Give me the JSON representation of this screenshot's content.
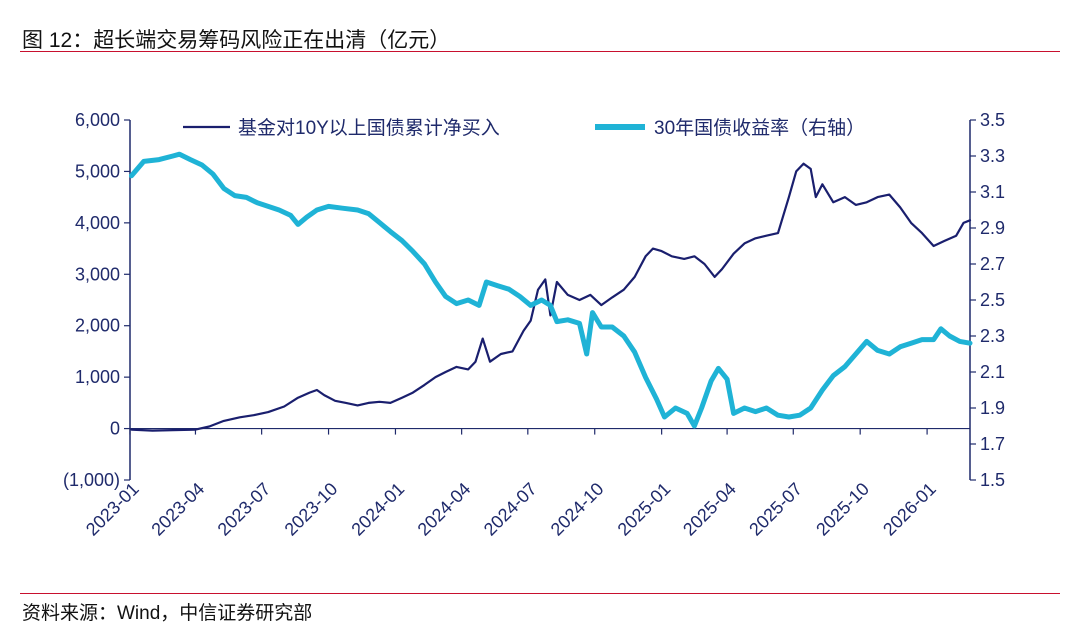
{
  "figure": {
    "title": "图 12：超长端交易筹码风险正在出清（亿元）",
    "source": "资料来源：Wind，中信证券研究部"
  },
  "colors": {
    "accent_rule": "#c8102e",
    "axis": "#1f2a6b",
    "tick_text": "#1f2a6b",
    "series_fund": "#1a1f6e",
    "series_yield": "#1fb3d6"
  },
  "chart_data": {
    "type": "line",
    "title": "超长端交易筹码风险正在出清（亿元）",
    "x_ticks": [
      "2023-01",
      "2023-04",
      "2023-07",
      "2023-10",
      "2024-01",
      "2024-04",
      "2024-07",
      "2024-10",
      "2025-01",
      "2025-04",
      "2025-07",
      "2025-10",
      "2026-01"
    ],
    "x_range": [
      "2023-01",
      "2026-03"
    ],
    "y_left": {
      "range": [
        -1000,
        6000
      ],
      "ticks": [
        -1000,
        0,
        1000,
        2000,
        3000,
        4000,
        5000,
        6000
      ],
      "tick_labels": [
        "(1,000)",
        "0",
        "1,000",
        "2,000",
        "3,000",
        "4,000",
        "5,000",
        "6,000"
      ]
    },
    "y_right": {
      "range": [
        1.5,
        3.5
      ],
      "ticks": [
        1.5,
        1.7,
        1.9,
        2.1,
        2.3,
        2.5,
        2.7,
        2.9,
        3.1,
        3.3,
        3.5
      ],
      "tick_labels": [
        "1.5",
        "1.7",
        "1.9",
        "2.1",
        "2.3",
        "2.5",
        "2.7",
        "2.9",
        "3.1",
        "3.3",
        "3.5"
      ]
    },
    "legend_position": "top",
    "series": [
      {
        "name": "基金对10Y以上国债累计净买入",
        "axis": "left",
        "points": [
          [
            "2023-01-03",
            -20
          ],
          [
            "2023-02-01",
            -40
          ],
          [
            "2023-03-01",
            -30
          ],
          [
            "2023-04-01",
            -20
          ],
          [
            "2023-04-20",
            40
          ],
          [
            "2023-05-10",
            150
          ],
          [
            "2023-06-01",
            220
          ],
          [
            "2023-06-20",
            260
          ],
          [
            "2023-07-10",
            320
          ],
          [
            "2023-08-01",
            430
          ],
          [
            "2023-08-20",
            600
          ],
          [
            "2023-09-05",
            700
          ],
          [
            "2023-09-15",
            750
          ],
          [
            "2023-09-25",
            650
          ],
          [
            "2023-10-10",
            540
          ],
          [
            "2023-10-25",
            500
          ],
          [
            "2023-11-10",
            450
          ],
          [
            "2023-11-25",
            500
          ],
          [
            "2023-12-10",
            520
          ],
          [
            "2023-12-25",
            500
          ],
          [
            "2024-01-10",
            600
          ],
          [
            "2024-01-25",
            700
          ],
          [
            "2024-02-10",
            850
          ],
          [
            "2024-02-25",
            1000
          ],
          [
            "2024-03-10",
            1100
          ],
          [
            "2024-03-25",
            1200
          ],
          [
            "2024-04-10",
            1150
          ],
          [
            "2024-04-20",
            1300
          ],
          [
            "2024-04-30",
            1750
          ],
          [
            "2024-05-10",
            1300
          ],
          [
            "2024-05-25",
            1450
          ],
          [
            "2024-06-10",
            1500
          ],
          [
            "2024-06-25",
            1900
          ],
          [
            "2024-07-05",
            2100
          ],
          [
            "2024-07-15",
            2700
          ],
          [
            "2024-07-25",
            2900
          ],
          [
            "2024-08-01",
            2200
          ],
          [
            "2024-08-10",
            2850
          ],
          [
            "2024-08-25",
            2600
          ],
          [
            "2024-09-10",
            2500
          ],
          [
            "2024-09-25",
            2600
          ],
          [
            "2024-10-10",
            2400
          ],
          [
            "2024-10-25",
            2550
          ],
          [
            "2024-11-10",
            2700
          ],
          [
            "2024-11-25",
            2950
          ],
          [
            "2024-12-10",
            3350
          ],
          [
            "2024-12-20",
            3500
          ],
          [
            "2025-01-01",
            3450
          ],
          [
            "2025-01-15",
            3350
          ],
          [
            "2025-02-01",
            3300
          ],
          [
            "2025-02-15",
            3350
          ],
          [
            "2025-03-01",
            3200
          ],
          [
            "2025-03-15",
            2950
          ],
          [
            "2025-03-25",
            3100
          ],
          [
            "2025-04-10",
            3400
          ],
          [
            "2025-04-25",
            3600
          ],
          [
            "2025-05-10",
            3700
          ],
          [
            "2025-05-25",
            3750
          ],
          [
            "2025-06-10",
            3800
          ],
          [
            "2025-06-25",
            4500
          ],
          [
            "2025-07-05",
            5000
          ],
          [
            "2025-07-15",
            5150
          ],
          [
            "2025-07-25",
            5050
          ],
          [
            "2025-08-01",
            4500
          ],
          [
            "2025-08-10",
            4750
          ],
          [
            "2025-08-25",
            4400
          ],
          [
            "2025-09-10",
            4500
          ],
          [
            "2025-09-25",
            4350
          ],
          [
            "2025-10-10",
            4400
          ],
          [
            "2025-10-25",
            4500
          ],
          [
            "2025-11-10",
            4550
          ],
          [
            "2025-11-25",
            4300
          ],
          [
            "2025-12-10",
            4000
          ],
          [
            "2025-12-25",
            3800
          ],
          [
            "2026-01-10",
            3550
          ],
          [
            "2026-01-25",
            3650
          ],
          [
            "2026-02-10",
            3750
          ],
          [
            "2026-02-20",
            4000
          ],
          [
            "2026-03-01",
            4050
          ]
        ]
      },
      {
        "name": "30年国债收益率（右轴）",
        "axis": "right",
        "points": [
          [
            "2023-01-03",
            3.19
          ],
          [
            "2023-01-20",
            3.27
          ],
          [
            "2023-02-10",
            3.28
          ],
          [
            "2023-03-01",
            3.3
          ],
          [
            "2023-03-10",
            3.31
          ],
          [
            "2023-03-25",
            3.28
          ],
          [
            "2023-04-10",
            3.25
          ],
          [
            "2023-04-25",
            3.2
          ],
          [
            "2023-05-10",
            3.12
          ],
          [
            "2023-05-25",
            3.08
          ],
          [
            "2023-06-10",
            3.07
          ],
          [
            "2023-06-25",
            3.04
          ],
          [
            "2023-07-10",
            3.02
          ],
          [
            "2023-07-25",
            3.0
          ],
          [
            "2023-08-10",
            2.97
          ],
          [
            "2023-08-20",
            2.92
          ],
          [
            "2023-09-01",
            2.96
          ],
          [
            "2023-09-15",
            3.0
          ],
          [
            "2023-10-01",
            3.02
          ],
          [
            "2023-10-20",
            3.01
          ],
          [
            "2023-11-10",
            3.0
          ],
          [
            "2023-11-25",
            2.98
          ],
          [
            "2023-12-10",
            2.93
          ],
          [
            "2023-12-25",
            2.88
          ],
          [
            "2024-01-10",
            2.83
          ],
          [
            "2024-01-25",
            2.77
          ],
          [
            "2024-02-10",
            2.7
          ],
          [
            "2024-02-25",
            2.6
          ],
          [
            "2024-03-10",
            2.52
          ],
          [
            "2024-03-25",
            2.48
          ],
          [
            "2024-04-10",
            2.5
          ],
          [
            "2024-04-25",
            2.47
          ],
          [
            "2024-05-05",
            2.6
          ],
          [
            "2024-05-20",
            2.58
          ],
          [
            "2024-06-05",
            2.56
          ],
          [
            "2024-06-20",
            2.52
          ],
          [
            "2024-07-05",
            2.47
          ],
          [
            "2024-07-20",
            2.5
          ],
          [
            "2024-08-01",
            2.47
          ],
          [
            "2024-08-10",
            2.38
          ],
          [
            "2024-08-25",
            2.39
          ],
          [
            "2024-09-10",
            2.37
          ],
          [
            "2024-09-20",
            2.2
          ],
          [
            "2024-09-28",
            2.43
          ],
          [
            "2024-10-10",
            2.35
          ],
          [
            "2024-10-25",
            2.35
          ],
          [
            "2024-11-10",
            2.3
          ],
          [
            "2024-11-25",
            2.21
          ],
          [
            "2024-12-10",
            2.07
          ],
          [
            "2024-12-25",
            1.95
          ],
          [
            "2025-01-05",
            1.85
          ],
          [
            "2025-01-20",
            1.9
          ],
          [
            "2025-02-05",
            1.87
          ],
          [
            "2025-02-15",
            1.8
          ],
          [
            "2025-02-25",
            1.9
          ],
          [
            "2025-03-10",
            2.05
          ],
          [
            "2025-03-20",
            2.12
          ],
          [
            "2025-04-01",
            2.06
          ],
          [
            "2025-04-10",
            1.87
          ],
          [
            "2025-04-25",
            1.9
          ],
          [
            "2025-05-10",
            1.88
          ],
          [
            "2025-05-25",
            1.9
          ],
          [
            "2025-06-10",
            1.86
          ],
          [
            "2025-06-25",
            1.85
          ],
          [
            "2025-07-10",
            1.86
          ],
          [
            "2025-07-25",
            1.9
          ],
          [
            "2025-08-10",
            2.0
          ],
          [
            "2025-08-25",
            2.08
          ],
          [
            "2025-09-10",
            2.13
          ],
          [
            "2025-09-25",
            2.2
          ],
          [
            "2025-10-10",
            2.27
          ],
          [
            "2025-10-25",
            2.22
          ],
          [
            "2025-11-10",
            2.2
          ],
          [
            "2025-11-25",
            2.24
          ],
          [
            "2025-12-10",
            2.26
          ],
          [
            "2025-12-25",
            2.28
          ],
          [
            "2026-01-10",
            2.28
          ],
          [
            "2026-01-20",
            2.34
          ],
          [
            "2026-02-01",
            2.3
          ],
          [
            "2026-02-15",
            2.27
          ],
          [
            "2026-03-01",
            2.26
          ]
        ]
      }
    ]
  }
}
